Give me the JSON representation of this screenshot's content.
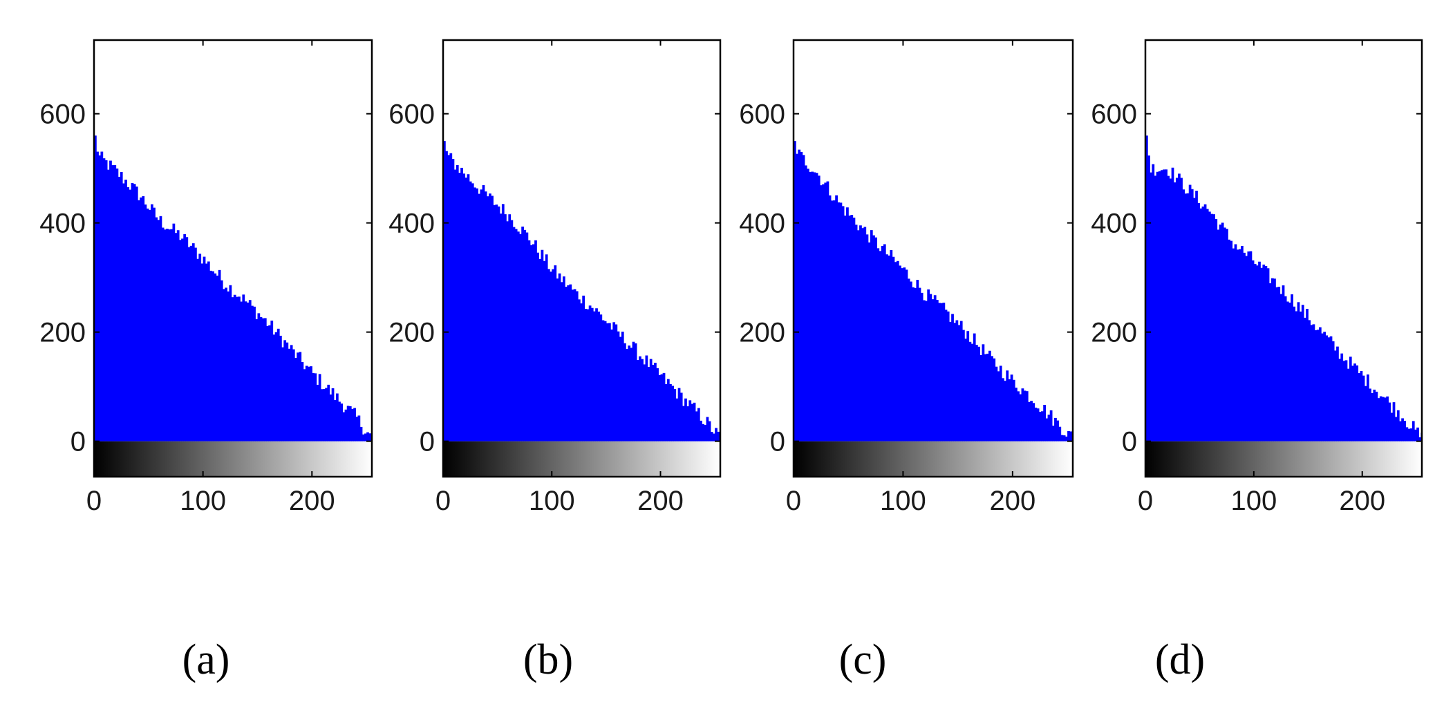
{
  "chart_data": [
    {
      "type": "bar",
      "caption": "(a)",
      "xlim": [
        0,
        255
      ],
      "ylim": [
        -65,
        735
      ],
      "x_ticks": [
        0,
        100,
        200
      ],
      "y_ticks": [
        0,
        200,
        400,
        600
      ],
      "grid": false,
      "colorbar": "grayscale 0-255 below x axis",
      "bar_color": "#0000ff",
      "bin_width": 2,
      "trend": [
        [
          0,
          560
        ],
        [
          5,
          520
        ],
        [
          20,
          495
        ],
        [
          40,
          455
        ],
        [
          60,
          405
        ],
        [
          80,
          375
        ],
        [
          100,
          335
        ],
        [
          120,
          290
        ],
        [
          140,
          255
        ],
        [
          160,
          215
        ],
        [
          180,
          170
        ],
        [
          200,
          125
        ],
        [
          220,
          85
        ],
        [
          240,
          45
        ],
        [
          255,
          5
        ]
      ]
    },
    {
      "type": "bar",
      "caption": "(b)",
      "xlim": [
        0,
        255
      ],
      "ylim": [
        -65,
        735
      ],
      "x_ticks": [
        0,
        100,
        200
      ],
      "y_ticks": [
        0,
        200,
        400,
        600
      ],
      "grid": false,
      "colorbar": "grayscale 0-255 below x axis",
      "bar_color": "#0000ff",
      "bin_width": 2,
      "trend": [
        [
          0,
          550
        ],
        [
          5,
          520
        ],
        [
          20,
          490
        ],
        [
          40,
          450
        ],
        [
          60,
          415
        ],
        [
          80,
          370
        ],
        [
          100,
          315
        ],
        [
          120,
          275
        ],
        [
          140,
          240
        ],
        [
          160,
          200
        ],
        [
          180,
          160
        ],
        [
          200,
          120
        ],
        [
          220,
          80
        ],
        [
          240,
          40
        ],
        [
          255,
          5
        ]
      ]
    },
    {
      "type": "bar",
      "caption": "(c)",
      "xlim": [
        0,
        255
      ],
      "ylim": [
        -65,
        735
      ],
      "x_ticks": [
        0,
        100,
        200
      ],
      "y_ticks": [
        0,
        200,
        400,
        600
      ],
      "grid": false,
      "colorbar": "grayscale 0-255 below x axis",
      "bar_color": "#0000ff",
      "bin_width": 2,
      "trend": [
        [
          0,
          550
        ],
        [
          5,
          525
        ],
        [
          20,
          495
        ],
        [
          40,
          440
        ],
        [
          60,
          395
        ],
        [
          80,
          355
        ],
        [
          100,
          315
        ],
        [
          120,
          270
        ],
        [
          140,
          235
        ],
        [
          160,
          195
        ],
        [
          180,
          150
        ],
        [
          200,
          110
        ],
        [
          220,
          75
        ],
        [
          240,
          35
        ],
        [
          255,
          5
        ]
      ]
    },
    {
      "type": "bar",
      "caption": "(d)",
      "xlim": [
        0,
        255
      ],
      "ylim": [
        -65,
        735
      ],
      "x_ticks": [
        0,
        100,
        200
      ],
      "y_ticks": [
        0,
        200,
        400,
        600
      ],
      "grid": false,
      "colorbar": "grayscale 0-255 below x axis",
      "bar_color": "#0000ff",
      "bin_width": 2,
      "trend": [
        [
          0,
          560
        ],
        [
          5,
          500
        ],
        [
          20,
          500
        ],
        [
          40,
          460
        ],
        [
          60,
          420
        ],
        [
          80,
          365
        ],
        [
          100,
          330
        ],
        [
          120,
          290
        ],
        [
          140,
          250
        ],
        [
          160,
          205
        ],
        [
          180,
          160
        ],
        [
          200,
          120
        ],
        [
          220,
          80
        ],
        [
          240,
          40
        ],
        [
          255,
          5
        ]
      ]
    }
  ]
}
